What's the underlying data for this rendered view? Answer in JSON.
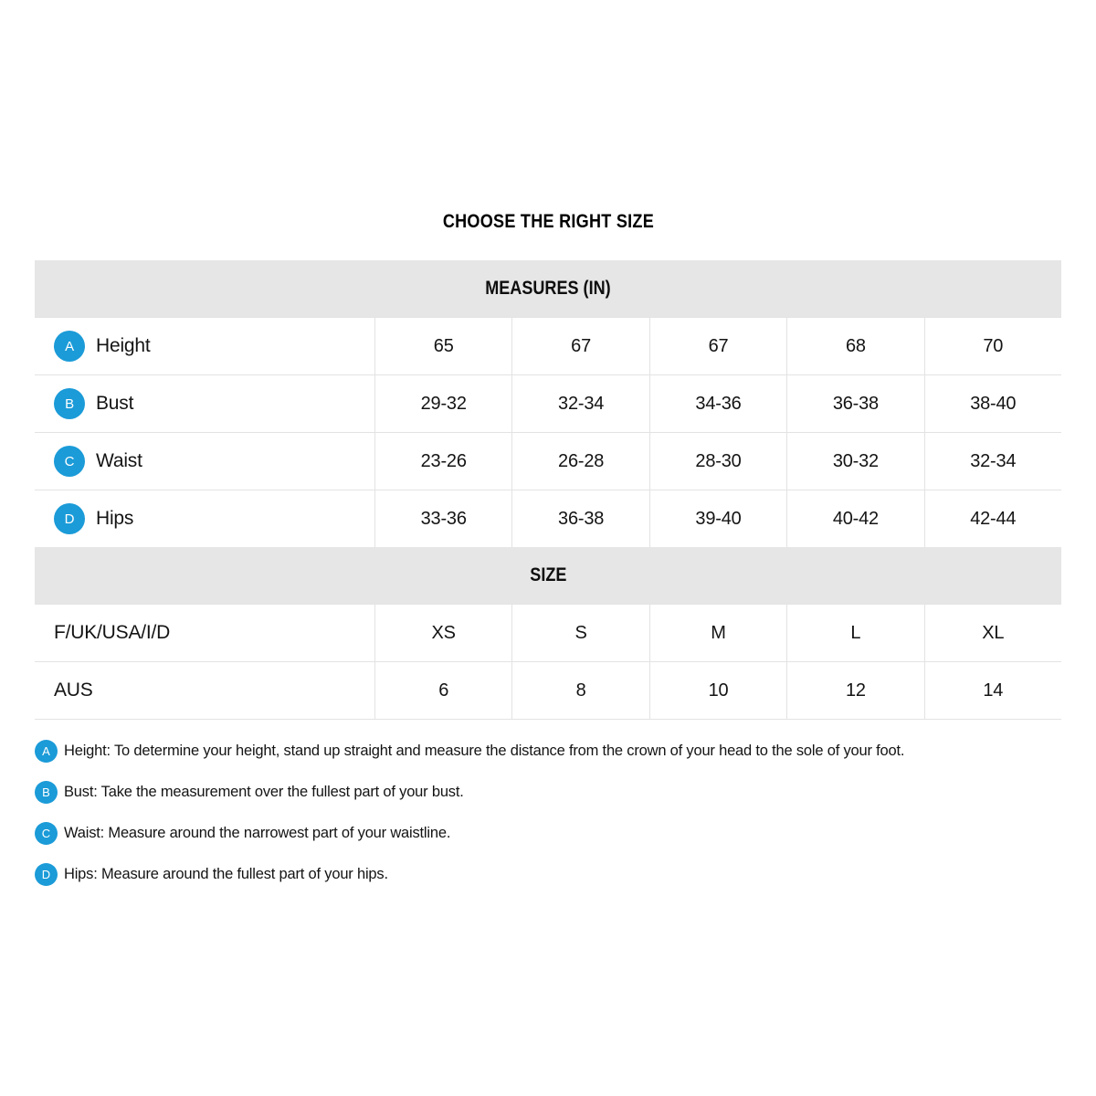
{
  "title": "CHOOSE THE RIGHT SIZE",
  "colors": {
    "accent_blue": "#1b9bd8",
    "header_bg": "#e6e6e6",
    "border": "#e3e3e3",
    "text": "#141414"
  },
  "table": {
    "measures_header": "MEASURES (IN)",
    "size_header": "SIZE",
    "measure_rows": [
      {
        "letter": "A",
        "label": "Height",
        "values": [
          "65",
          "67",
          "67",
          "68",
          "70"
        ]
      },
      {
        "letter": "B",
        "label": "Bust",
        "values": [
          "29-32",
          "32-34",
          "34-36",
          "36-38",
          "38-40"
        ]
      },
      {
        "letter": "C",
        "label": "Waist",
        "values": [
          "23-26",
          "26-28",
          "28-30",
          "30-32",
          "32-34"
        ]
      },
      {
        "letter": "D",
        "label": "Hips",
        "values": [
          "33-36",
          "36-38",
          "39-40",
          "40-42",
          "42-44"
        ]
      }
    ],
    "size_rows": [
      {
        "label": "F/UK/USA/I/D",
        "values": [
          "XS",
          "S",
          "M",
          "L",
          "XL"
        ]
      },
      {
        "label": "AUS",
        "values": [
          "6",
          "8",
          "10",
          "12",
          "14"
        ]
      }
    ]
  },
  "footnotes": [
    {
      "letter": "A",
      "text": "Height: To determine your height, stand up straight and measure the distance from the crown of your head to the sole of your foot."
    },
    {
      "letter": "B",
      "text": "Bust: Take the measurement over the fullest part of your bust."
    },
    {
      "letter": "C",
      "text": "Waist: Measure around the narrowest part of your waistline."
    },
    {
      "letter": "D",
      "text": "Hips: Measure around the fullest part of your hips."
    }
  ]
}
